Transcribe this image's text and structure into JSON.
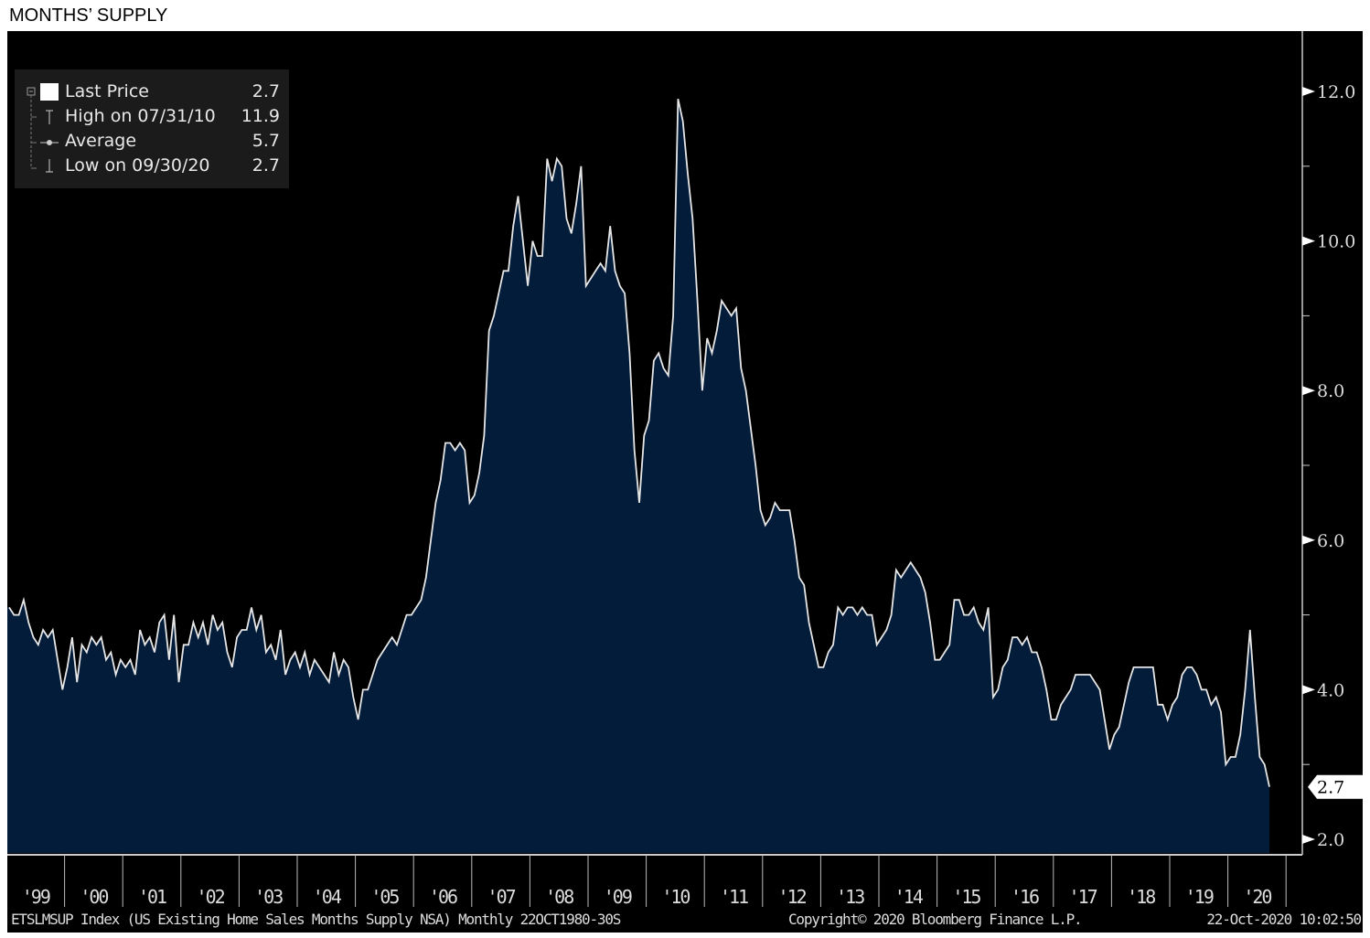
{
  "header": {
    "title": "MONTHS’ SUPPLY"
  },
  "legend": {
    "items": [
      {
        "label": "Last Price",
        "value": "2.7",
        "icon": "white-square-icon"
      },
      {
        "label": "High on 07/31/10",
        "value": "11.9",
        "icon": "high-marker-icon"
      },
      {
        "label": "Average",
        "value": "5.7",
        "icon": "average-marker-icon"
      },
      {
        "label": "Low on 09/30/20",
        "value": "2.7",
        "icon": "low-marker-icon"
      }
    ]
  },
  "footer": {
    "security": "ETSLMSUP Index (US Existing Home Sales Months Supply NSA)  Monthly 22OCT1980-30S",
    "copyright": "Copyright© 2020 Bloomberg Finance L.P.",
    "timestamp": "22-Oct-2020 10:02:50"
  },
  "colors": {
    "background": "#000000",
    "fill": "#021c3a",
    "line": "#e6e6e6",
    "axis": "#cccccc"
  },
  "chart_data": {
    "type": "area",
    "frequency": "monthly",
    "start": "1999-01",
    "end": "2020-09",
    "ylim": [
      2.0,
      12.5
    ],
    "yticks": [
      "2.0",
      "4.0",
      "6.0",
      "8.0",
      "10.0",
      "12.0"
    ],
    "xticks": [
      "'99",
      "'00",
      "'01",
      "'02",
      "'03",
      "'04",
      "'05",
      "'06",
      "'07",
      "'08",
      "'09",
      "'10",
      "'11",
      "'12",
      "'13",
      "'14",
      "'15",
      "'16",
      "'17",
      "'18",
      "'19",
      "'20"
    ],
    "y_axis_side": "right",
    "last_value_label": "2.7",
    "grid": false,
    "legend_position": "top-left",
    "values": {
      "1999": [
        5.1,
        5.0,
        5.0,
        5.2,
        4.9,
        4.7,
        4.6,
        4.8,
        4.7,
        4.8,
        4.4,
        4.0
      ],
      "2000": [
        4.3,
        4.7,
        4.1,
        4.6,
        4.5,
        4.7,
        4.6,
        4.7,
        4.4,
        4.5,
        4.2,
        4.4
      ],
      "2001": [
        4.3,
        4.4,
        4.2,
        4.8,
        4.6,
        4.7,
        4.5,
        4.9,
        5.0,
        4.4,
        5.0,
        4.1
      ],
      "2002": [
        4.6,
        4.6,
        4.9,
        4.7,
        4.9,
        4.6,
        5.0,
        4.8,
        4.9,
        4.5,
        4.3,
        4.7
      ],
      "2003": [
        4.8,
        4.8,
        5.1,
        4.8,
        5.0,
        4.5,
        4.6,
        4.4,
        4.8,
        4.2,
        4.4,
        4.5
      ],
      "2004": [
        4.3,
        4.5,
        4.2,
        4.4,
        4.3,
        4.2,
        4.1,
        4.5,
        4.2,
        4.4,
        4.3,
        3.9
      ],
      "2005": [
        3.6,
        4.0,
        4.0,
        4.2,
        4.4,
        4.5,
        4.6,
        4.7,
        4.6,
        4.8,
        5.0,
        5.0
      ],
      "2006": [
        5.1,
        5.2,
        5.5,
        6.0,
        6.5,
        6.8,
        7.3,
        7.3,
        7.2,
        7.3,
        7.2,
        6.5
      ],
      "2007": [
        6.6,
        6.9,
        7.4,
        8.8,
        9.0,
        9.3,
        9.6,
        9.6,
        10.2,
        10.6,
        10.0,
        9.4
      ],
      "2008": [
        10.0,
        9.8,
        9.8,
        11.1,
        10.8,
        11.1,
        11.0,
        10.3,
        10.1,
        10.5,
        11.0,
        9.4
      ],
      "2009": [
        9.5,
        9.6,
        9.7,
        9.6,
        10.2,
        9.6,
        9.4,
        9.3,
        8.5,
        7.2,
        6.5,
        7.4
      ],
      "2010": [
        7.6,
        8.4,
        8.5,
        8.3,
        8.2,
        9.0,
        11.9,
        11.6,
        10.9,
        10.3,
        9.2,
        8.0
      ],
      "2011": [
        8.7,
        8.5,
        8.8,
        9.2,
        9.1,
        9.0,
        9.1,
        8.3,
        8.0,
        7.5,
        7.0,
        6.4
      ],
      "2012": [
        6.2,
        6.3,
        6.5,
        6.4,
        6.4,
        6.4,
        6.0,
        5.5,
        5.4,
        4.9,
        4.6,
        4.3
      ],
      "2013": [
        4.3,
        4.5,
        4.6,
        5.1,
        5.0,
        5.1,
        5.1,
        5.0,
        5.1,
        5.0,
        5.0,
        4.6
      ],
      "2014": [
        4.7,
        4.8,
        5.0,
        5.6,
        5.5,
        5.6,
        5.7,
        5.6,
        5.5,
        5.3,
        4.9,
        4.4
      ],
      "2015": [
        4.4,
        4.5,
        4.6,
        5.2,
        5.2,
        5.0,
        5.0,
        5.1,
        4.9,
        4.8,
        5.1,
        3.9
      ],
      "2016": [
        4.0,
        4.3,
        4.4,
        4.7,
        4.7,
        4.6,
        4.7,
        4.5,
        4.5,
        4.3,
        4.0,
        3.6
      ],
      "2017": [
        3.6,
        3.8,
        3.9,
        4.0,
        4.2,
        4.2,
        4.2,
        4.2,
        4.1,
        4.0,
        3.6,
        3.2
      ],
      "2018": [
        3.4,
        3.5,
        3.8,
        4.1,
        4.3,
        4.3,
        4.3,
        4.3,
        4.3,
        3.8,
        3.8,
        3.6
      ],
      "2019": [
        3.8,
        3.9,
        4.2,
        4.3,
        4.3,
        4.2,
        4.0,
        4.0,
        3.8,
        3.9,
        3.7,
        3.0
      ],
      "2020": [
        3.1,
        3.1,
        3.4,
        4.0,
        4.8,
        3.9,
        3.1,
        3.0,
        2.7
      ]
    }
  }
}
